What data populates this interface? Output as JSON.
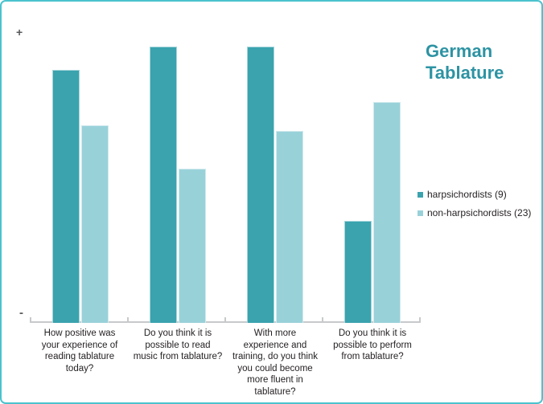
{
  "frame": {
    "border_color": "#4ac3ce",
    "background_color": "#ffffff"
  },
  "title": {
    "text": "German\nTablature",
    "color": "#2d93a3"
  },
  "axis": {
    "plus_label": "+",
    "minus_label": "-",
    "line_color": "#c8c9ca"
  },
  "legend": {
    "position": "right",
    "items": [
      {
        "label": "harpsichordists (9)",
        "color": "#3aa3ae"
      },
      {
        "label": "non-harpsichordists (23)",
        "color": "#99d1d9"
      }
    ]
  },
  "chart_data": {
    "type": "bar",
    "title": "German Tablature",
    "categories": [
      "How positive was your experience of reading tablature today?",
      "Do you think it is possible to read music from tablature?",
      "With more experience and training, do you think you could become more fluent in tablature?",
      "Do you think it is possible to perform from tablature?"
    ],
    "categories_display": [
      "How positive was\nyour experience of\nreading tablature\ntoday?",
      "Do you think it is\npossible to read\nmusic from tablature?",
      "With more\nexperience and\ntraining, do you think\nyou could become\nmore fluent in\ntablature?",
      "Do you think it is\npossible to perform\nfrom tablature?"
    ],
    "series": [
      {
        "name": "harpsichordists (9)",
        "color": "#3aa3ae",
        "values": [
          0.87,
          0.95,
          0.95,
          0.35
        ]
      },
      {
        "name": "non-harpsichordists (23)",
        "color": "#99d1d9",
        "values": [
          0.68,
          0.53,
          0.66,
          0.76
        ]
      }
    ],
    "xlabel": "",
    "ylabel": "",
    "ylim": [
      0,
      1
    ],
    "y_axis_qualitative": {
      "top": "+",
      "bottom": "-"
    },
    "value_scale": "relative 0-1 (unlabeled qualitative axis from '-' to '+')",
    "grid": false,
    "legend_position": "right"
  }
}
